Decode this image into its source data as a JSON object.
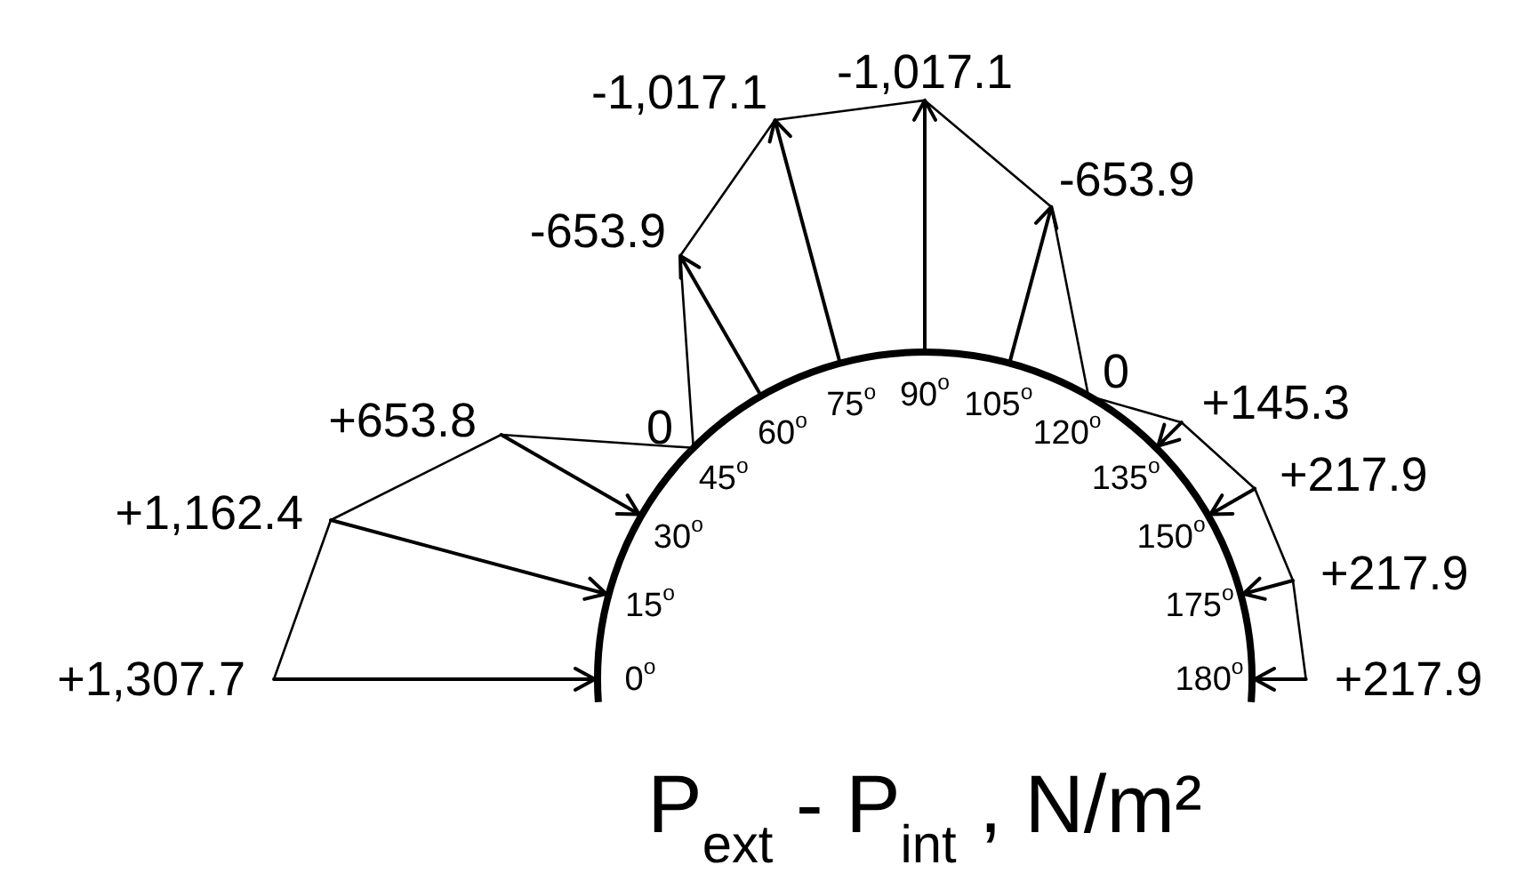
{
  "chart_data": {
    "type": "other",
    "xlabel": "P$_{ext}$ - P$_{int}$ , N/m²",
    "categories": [
      "0$^{o}$",
      "15$^{o}$",
      "30$^{o}$",
      "45$^{o}$",
      "60$^{o}$",
      "75$^{o}$",
      "90$^{o}$",
      "105$^{o}$",
      "120$^{o}$",
      "135$^{o}$",
      "150$^{o}$",
      "175$^{o}$",
      "180$^{o}$"
    ],
    "values": [
      1307.7,
      1162.4,
      653.8,
      0,
      -653.9,
      -1017.1,
      -1017.1,
      -653.9,
      0,
      145.3,
      217.9,
      217.9,
      217.9
    ],
    "value_labels": [
      "+1,307.7",
      "+1,162.4",
      "+653.8",
      "0",
      "-653.9",
      "-1,017.1",
      "-1,017.1",
      "-653.9",
      "0",
      "+145.3",
      "+217.9",
      "+217.9",
      "+217.9"
    ],
    "color": "#000000"
  }
}
